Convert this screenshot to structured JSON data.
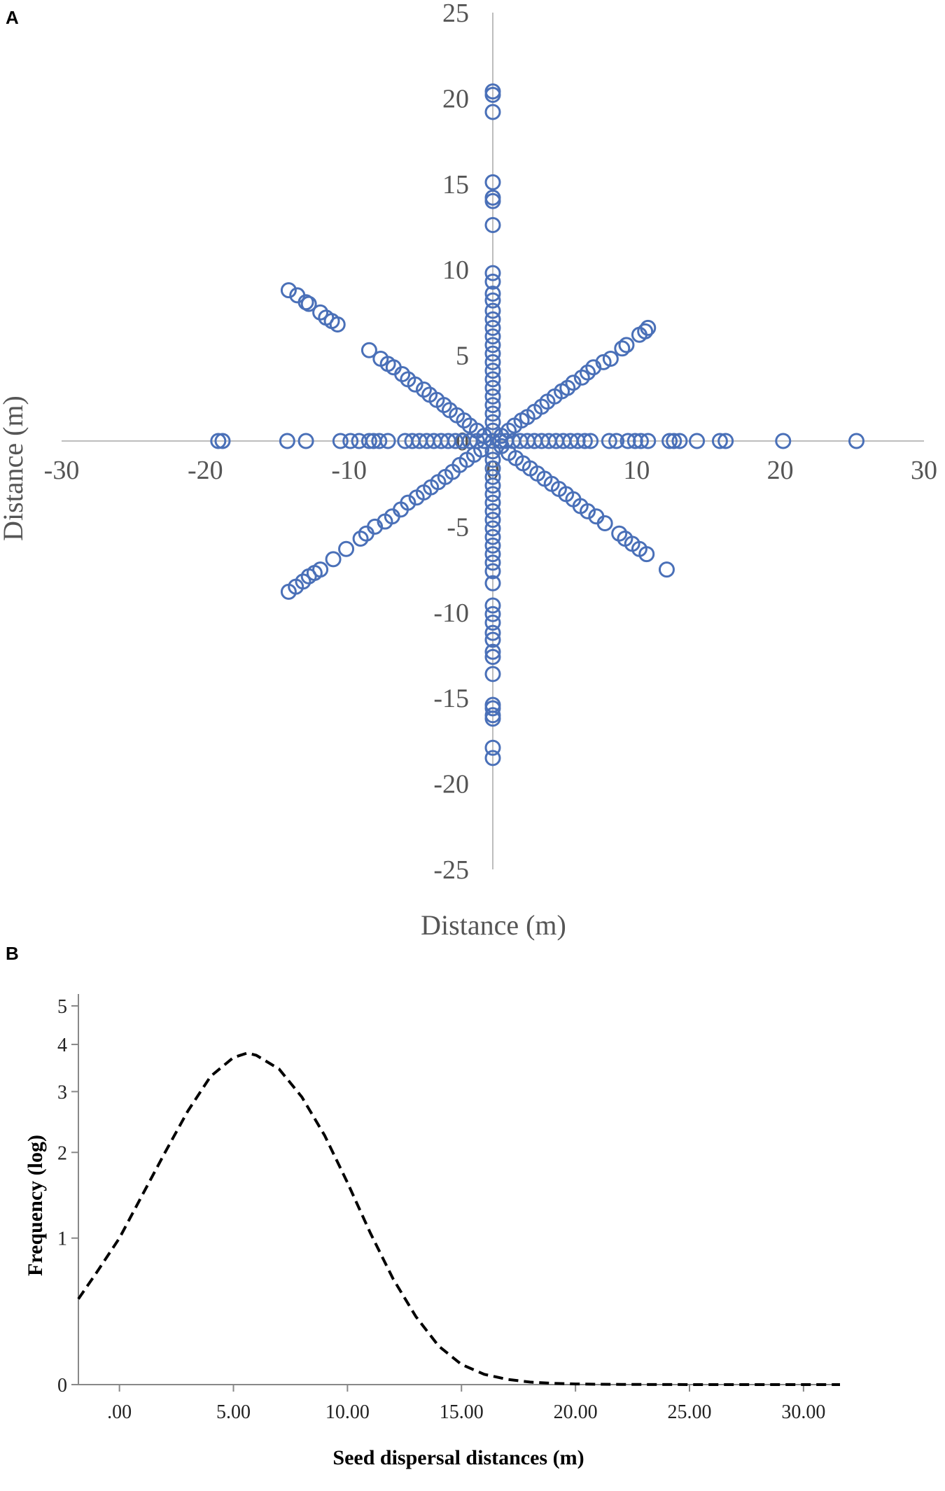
{
  "chart_data": [
    {
      "panel": "A",
      "type": "scatter",
      "xlabel": "Distance (m)",
      "ylabel": "Distance (m)",
      "xlim": [
        -30,
        30
      ],
      "ylim": [
        -25,
        25
      ],
      "xticks": [
        "-30",
        "-20",
        "-10",
        "0",
        "10",
        "20",
        "30"
      ],
      "yticks": [
        "25",
        "20",
        "15",
        "10",
        "5",
        "0",
        "-5",
        "-10",
        "-15",
        "-20",
        "-25"
      ],
      "marker_color": "#4a70b8",
      "series": [
        {
          "points": [
            [
              0,
              20.4
            ],
            [
              0,
              20.2
            ],
            [
              0,
              19.2
            ],
            [
              0,
              15.1
            ],
            [
              0,
              14.2
            ],
            [
              0,
              14
            ],
            [
              0,
              12.6
            ],
            [
              0,
              9.8
            ],
            [
              0,
              9.3
            ],
            [
              0,
              8.6
            ],
            [
              0,
              8.2
            ],
            [
              0,
              7.6
            ],
            [
              0,
              7.1
            ],
            [
              0,
              6.6
            ],
            [
              0,
              6.1
            ],
            [
              0,
              5.6
            ],
            [
              0,
              5.1
            ],
            [
              0,
              4.6
            ],
            [
              0,
              4.1
            ],
            [
              0,
              3.6
            ],
            [
              0,
              3.1
            ],
            [
              0,
              2.6
            ],
            [
              0,
              2.1
            ],
            [
              0,
              1.6
            ],
            [
              0,
              1.1
            ],
            [
              0,
              0.6
            ],
            [
              0,
              -0.6
            ],
            [
              0,
              -1.1
            ],
            [
              0,
              -1.6
            ],
            [
              0,
              -2.1
            ],
            [
              0,
              -2.6
            ],
            [
              0,
              -3.1
            ],
            [
              0,
              -3.6
            ],
            [
              0,
              -4.1
            ],
            [
              0,
              -4.6
            ],
            [
              0,
              -5.1
            ],
            [
              0,
              -5.6
            ],
            [
              0,
              -6.1
            ],
            [
              0,
              -6.6
            ],
            [
              0,
              -7.1
            ],
            [
              0,
              -7.6
            ],
            [
              0,
              -8.3
            ],
            [
              0,
              -9.6
            ],
            [
              0,
              -10.1
            ],
            [
              0,
              -10.6
            ],
            [
              0,
              -11.2
            ],
            [
              0,
              -11.6
            ],
            [
              0,
              -12.3
            ],
            [
              0,
              -12.6
            ],
            [
              0,
              -13.6
            ],
            [
              0,
              -15.4
            ],
            [
              0,
              -15.6
            ],
            [
              0,
              -16
            ],
            [
              0,
              -16.2
            ],
            [
              0,
              -17.9
            ],
            [
              0,
              -18.5
            ],
            [
              25.3,
              0
            ],
            [
              20.2,
              0
            ],
            [
              16.2,
              0
            ],
            [
              15.8,
              0
            ],
            [
              14.2,
              0
            ],
            [
              13,
              0
            ],
            [
              12.6,
              0
            ],
            [
              12.3,
              0
            ],
            [
              10.8,
              0
            ],
            [
              10.3,
              0
            ],
            [
              9.9,
              0
            ],
            [
              9.4,
              0
            ],
            [
              8.6,
              0
            ],
            [
              8.1,
              0
            ],
            [
              6.8,
              0
            ],
            [
              6.4,
              0
            ],
            [
              5.9,
              0
            ],
            [
              5.4,
              0
            ],
            [
              4.9,
              0
            ],
            [
              4.4,
              0
            ],
            [
              3.9,
              0
            ],
            [
              3.4,
              0
            ],
            [
              2.9,
              0
            ],
            [
              2.4,
              0
            ],
            [
              1.9,
              0
            ],
            [
              1.4,
              0
            ],
            [
              0.9,
              0
            ],
            [
              0.5,
              0
            ],
            [
              -18.8,
              0
            ],
            [
              -19.1,
              0
            ],
            [
              -14.3,
              0
            ],
            [
              -13,
              0
            ],
            [
              -10.6,
              0
            ],
            [
              -9.9,
              0
            ],
            [
              -9.3,
              0
            ],
            [
              -8.6,
              0
            ],
            [
              -8.3,
              0
            ],
            [
              -7.9,
              0
            ],
            [
              -7.3,
              0
            ],
            [
              -6.1,
              0
            ],
            [
              -5.6,
              0
            ],
            [
              -5.1,
              0
            ],
            [
              -4.6,
              0
            ],
            [
              -4.1,
              0
            ],
            [
              -3.6,
              0
            ],
            [
              -3.1,
              0
            ],
            [
              -2.6,
              0
            ],
            [
              -2.1,
              0
            ],
            [
              -1.6,
              0
            ],
            [
              -1.1,
              0
            ],
            [
              -0.6,
              0
            ],
            [
              10.8,
              6.6
            ],
            [
              10.6,
              6.4
            ],
            [
              10.2,
              6.2
            ],
            [
              9.3,
              5.6
            ],
            [
              9,
              5.4
            ],
            [
              8.2,
              4.8
            ],
            [
              7.7,
              4.6
            ],
            [
              7,
              4.3
            ],
            [
              6.6,
              4
            ],
            [
              6.2,
              3.7
            ],
            [
              5.6,
              3.4
            ],
            [
              5.2,
              3.1
            ],
            [
              4.8,
              2.9
            ],
            [
              4.3,
              2.6
            ],
            [
              3.8,
              2.3
            ],
            [
              3.4,
              2
            ],
            [
              2.9,
              1.7
            ],
            [
              2.4,
              1.4
            ],
            [
              2,
              1.2
            ],
            [
              1.5,
              0.9
            ],
            [
              1.1,
              0.6
            ],
            [
              0.6,
              0.3
            ],
            [
              -14.2,
              8.8
            ],
            [
              -13.6,
              8.5
            ],
            [
              -13,
              8.1
            ],
            [
              -12.8,
              8
            ],
            [
              -12,
              7.5
            ],
            [
              -11.6,
              7.2
            ],
            [
              -11.2,
              7
            ],
            [
              -10.8,
              6.8
            ],
            [
              -8.6,
              5.3
            ],
            [
              -7.8,
              4.8
            ],
            [
              -7.3,
              4.5
            ],
            [
              -6.9,
              4.3
            ],
            [
              -6.3,
              3.9
            ],
            [
              -5.9,
              3.6
            ],
            [
              -5.4,
              3.3
            ],
            [
              -4.8,
              3
            ],
            [
              -4.4,
              2.7
            ],
            [
              -3.9,
              2.4
            ],
            [
              -3.4,
              2.1
            ],
            [
              -3,
              1.8
            ],
            [
              -2.5,
              1.5
            ],
            [
              -2,
              1.2
            ],
            [
              -1.6,
              0.9
            ],
            [
              -1.1,
              0.6
            ],
            [
              -0.6,
              0.3
            ],
            [
              12.1,
              -7.5
            ],
            [
              10.7,
              -6.6
            ],
            [
              10.2,
              -6.3
            ],
            [
              9.7,
              -6
            ],
            [
              9.2,
              -5.7
            ],
            [
              8.8,
              -5.4
            ],
            [
              7.8,
              -4.8
            ],
            [
              7.2,
              -4.4
            ],
            [
              6.6,
              -4.1
            ],
            [
              6.1,
              -3.8
            ],
            [
              5.6,
              -3.4
            ],
            [
              5.1,
              -3.1
            ],
            [
              4.6,
              -2.8
            ],
            [
              4.1,
              -2.5
            ],
            [
              3.6,
              -2.2
            ],
            [
              3.1,
              -1.9
            ],
            [
              2.6,
              -1.6
            ],
            [
              2.1,
              -1.3
            ],
            [
              1.6,
              -1
            ],
            [
              1.1,
              -0.7
            ],
            [
              0.6,
              -0.3
            ],
            [
              -14.2,
              -8.8
            ],
            [
              -13.7,
              -8.5
            ],
            [
              -13.2,
              -8.2
            ],
            [
              -12.8,
              -7.9
            ],
            [
              -12.4,
              -7.7
            ],
            [
              -12,
              -7.5
            ],
            [
              -11.1,
              -6.9
            ],
            [
              -10.2,
              -6.3
            ],
            [
              -9.2,
              -5.7
            ],
            [
              -8.8,
              -5.4
            ],
            [
              -8.2,
              -5
            ],
            [
              -7.5,
              -4.7
            ],
            [
              -7,
              -4.4
            ],
            [
              -6.4,
              -4
            ],
            [
              -5.9,
              -3.6
            ],
            [
              -5.3,
              -3.3
            ],
            [
              -4.8,
              -3
            ],
            [
              -4.3,
              -2.7
            ],
            [
              -3.8,
              -2.4
            ],
            [
              -3.3,
              -2.1
            ],
            [
              -2.8,
              -1.8
            ],
            [
              -2.3,
              -1.4
            ],
            [
              -1.8,
              -1.1
            ],
            [
              -1.3,
              -0.8
            ],
            [
              -0.8,
              -0.5
            ],
            [
              0,
              0
            ]
          ]
        }
      ]
    },
    {
      "panel": "B",
      "type": "line",
      "xlabel": "Seed dispersal distances (m)",
      "ylabel": "Frequency (log)",
      "xlim": [
        -1.8,
        31.6
      ],
      "x_ticks": [
        0,
        5,
        10,
        15,
        20,
        25,
        30
      ],
      "x_tick_labels": [
        ".00",
        "5.00",
        "10.00",
        "15.00",
        "20.00",
        "25.00",
        "30.00"
      ],
      "y_ticks": [
        0,
        1,
        2,
        3,
        4,
        5
      ],
      "y_tick_labels": [
        "0",
        "1",
        "2",
        "3",
        "4",
        "5"
      ],
      "line_style": "dashed",
      "line_color": "#000000",
      "series": [
        {
          "x": [
            -1.8,
            -1,
            0,
            1,
            2,
            3,
            4,
            5,
            5.6,
            6,
            7,
            8,
            9,
            10,
            11,
            12,
            13,
            14,
            15,
            16,
            17,
            18,
            19,
            20,
            21,
            22,
            23,
            24,
            26,
            28,
            30,
            31.6
          ],
          "y": [
            0.5,
            0.7,
            1.0,
            1.45,
            2.0,
            2.65,
            3.3,
            3.7,
            3.8,
            3.75,
            3.45,
            2.9,
            2.25,
            1.6,
            1.05,
            0.65,
            0.38,
            0.2,
            0.1,
            0.05,
            0.025,
            0.012,
            0.006,
            0.003,
            0.0015,
            0.001,
            0.0005,
            0.0003,
            0.0001,
            0,
            0,
            0
          ]
        }
      ]
    }
  ]
}
